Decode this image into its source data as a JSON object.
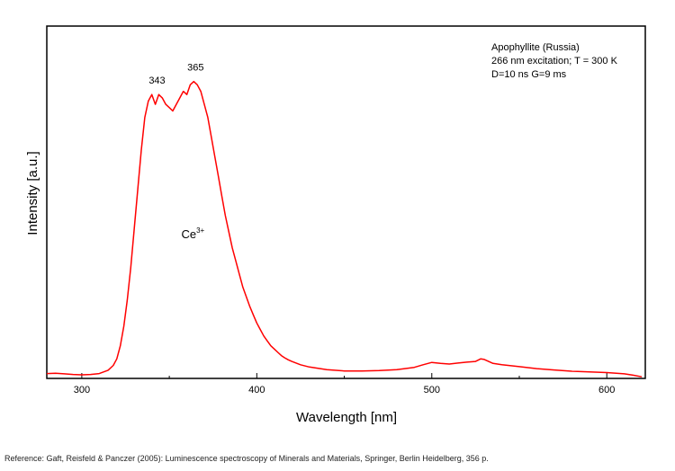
{
  "chart_data": {
    "type": "line",
    "xlabel": "Wavelength [nm]",
    "ylabel": "Intensity [a.u.]",
    "xlim": [
      280,
      622
    ],
    "ylim": [
      0,
      1.08
    ],
    "xticks": [
      "300",
      "400",
      "500",
      "600"
    ],
    "yticks": [],
    "grid": false,
    "legend": "none",
    "line_color": "#ff0000",
    "info_lines": [
      "Apophyllite (Russia)",
      "266 nm excitation; T = 300 K",
      "D=10 ns G=9 ms"
    ],
    "annotations": [
      {
        "text": "343",
        "x": 343,
        "y": 0.87
      },
      {
        "text": "365",
        "x": 365,
        "y": 0.91
      },
      {
        "text": "Ce",
        "sup": "3+",
        "x": 362,
        "y": 0.43
      }
    ],
    "series": [
      {
        "x": [
          280,
          285,
          290,
          295,
          300,
          305,
          310,
          315,
          318,
          320,
          322,
          324,
          326,
          328,
          330,
          332,
          334,
          336,
          338,
          340,
          342,
          344,
          346,
          348,
          350,
          352,
          354,
          356,
          358,
          360,
          362,
          364,
          366,
          368,
          370,
          372,
          374,
          376,
          378,
          380,
          382,
          384,
          386,
          388,
          390,
          392,
          394,
          396,
          398,
          400,
          402,
          404,
          406,
          408,
          410,
          412,
          414,
          416,
          418,
          420,
          425,
          430,
          440,
          450,
          460,
          470,
          480,
          490,
          495,
          500,
          505,
          510,
          515,
          520,
          525,
          528,
          530,
          535,
          540,
          550,
          560,
          570,
          580,
          590,
          600,
          610,
          615,
          620
        ],
        "y": [
          0.015,
          0.016,
          0.014,
          0.012,
          0.011,
          0.012,
          0.015,
          0.025,
          0.04,
          0.06,
          0.1,
          0.16,
          0.24,
          0.34,
          0.46,
          0.58,
          0.7,
          0.8,
          0.85,
          0.87,
          0.84,
          0.87,
          0.86,
          0.84,
          0.83,
          0.82,
          0.84,
          0.86,
          0.88,
          0.87,
          0.9,
          0.91,
          0.9,
          0.88,
          0.84,
          0.8,
          0.74,
          0.68,
          0.62,
          0.56,
          0.5,
          0.45,
          0.4,
          0.36,
          0.32,
          0.28,
          0.25,
          0.22,
          0.195,
          0.17,
          0.15,
          0.13,
          0.115,
          0.1,
          0.09,
          0.08,
          0.07,
          0.063,
          0.057,
          0.052,
          0.042,
          0.035,
          0.027,
          0.023,
          0.023,
          0.024,
          0.027,
          0.034,
          0.042,
          0.049,
          0.046,
          0.044,
          0.047,
          0.05,
          0.052,
          0.06,
          0.058,
          0.046,
          0.042,
          0.036,
          0.03,
          0.026,
          0.022,
          0.02,
          0.018,
          0.014,
          0.01,
          0.005
        ]
      }
    ]
  },
  "reference": "Reference: Gaft, Reisfeld & Panczer (2005): Luminescence spectroscopy of Minerals and Materials, Springer, Berlin Heidelberg, 356 p."
}
